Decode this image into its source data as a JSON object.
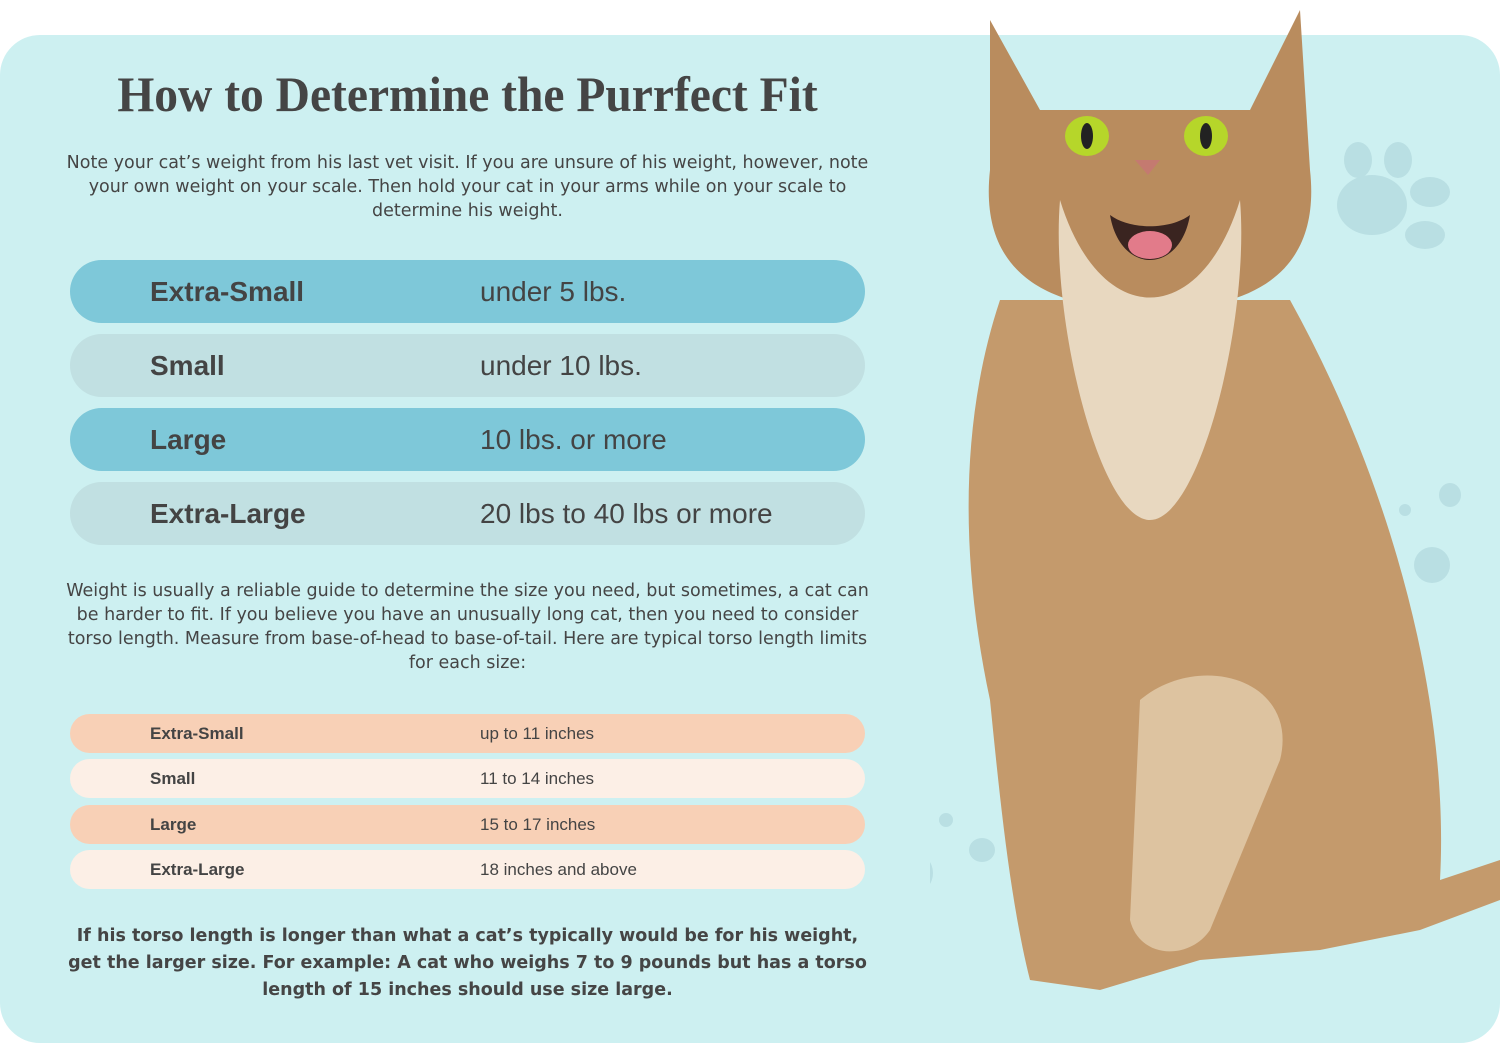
{
  "title": "How to Determine the Purrfect Fit",
  "intro": "Note your cat’s weight from his last vet visit. If you are unsure of his weight, however, note your own weight on your scale. Then hold your cat in your arms while on your scale to determine his weight.",
  "weight_table": [
    {
      "size": "Extra-Small",
      "value": "under 5 lbs."
    },
    {
      "size": "Small",
      "value": "under 10 lbs."
    },
    {
      "size": "Large",
      "value": "10 lbs. or more"
    },
    {
      "size": "Extra-Large",
      "value": "20 lbs to 40 lbs or more"
    }
  ],
  "torso_intro": "Weight is usually a reliable guide to determine the size you need, but sometimes, a cat can be harder to fit. If you believe you have an unusually long cat, then you need to consider torso length. Measure from base-of-head to base-of-tail. Here are typical torso length limits for each size:",
  "torso_table": [
    {
      "size": "Extra-Small",
      "value": "up to 11 inches"
    },
    {
      "size": "Small",
      "value": "11 to 14 inches"
    },
    {
      "size": "Large",
      "value": "15 to 17 inches"
    },
    {
      "size": "Extra-Large",
      "value": "18 inches and above"
    }
  ],
  "note": "If his torso length is longer than what a cat’s typically would be for his weight, get the larger size. For example: A cat who weighs 7 to 9 pounds but has a torso length of 15 inches should use size large.",
  "colors": {
    "background": "#cdf0f1",
    "row_dark": "#7ec8d9",
    "row_light": "#c1e0e2",
    "row_peach": "#f8d0b6",
    "row_cream": "#fcefe6"
  }
}
